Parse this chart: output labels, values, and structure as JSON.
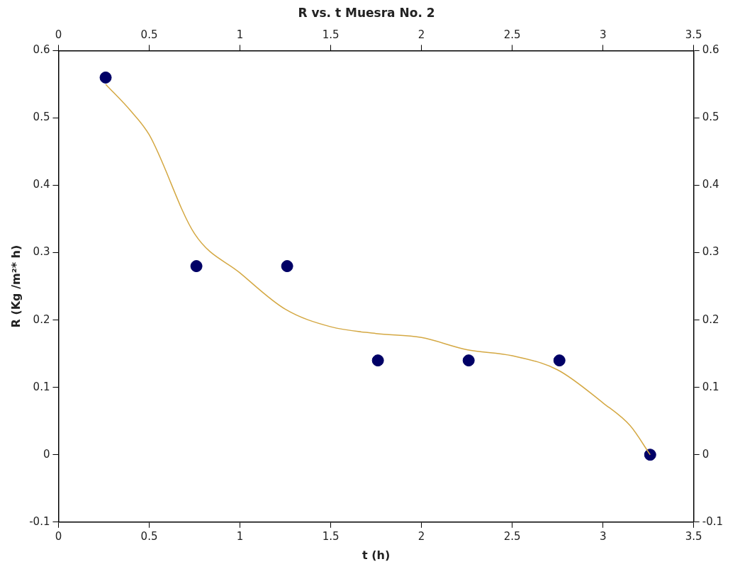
{
  "chart_data": {
    "type": "scatter",
    "title": "R vs. t Muesra No. 2",
    "xlabel": "t (h)",
    "ylabel": "R (Kg /m²* h)",
    "x": [
      0.26,
      0.76,
      1.26,
      1.76,
      2.26,
      2.76,
      3.26
    ],
    "series": [
      {
        "color": "#000066",
        "marker": "circle",
        "values": [
          0.56,
          0.28,
          0.28,
          0.14,
          0.14,
          0.14,
          0
        ]
      },
      {
        "type": "line",
        "color": "#d4a843",
        "marker": "none",
        "x": [
          0.26,
          0.4,
          0.5,
          0.75,
          1,
          1.25,
          1.5,
          1.75,
          2,
          2.25,
          2.5,
          2.75,
          3,
          3.15,
          3.26
        ],
        "values": [
          0.55,
          0.51,
          0.475,
          0.328,
          0.27,
          0.216,
          0.19,
          0.18,
          0.174,
          0.156,
          0.147,
          0.126,
          0.077,
          0.043,
          0
        ]
      }
    ],
    "xlim": [
      0,
      3.5
    ],
    "xticks": [
      0,
      0.5,
      1,
      1.5,
      2,
      2.5,
      3,
      3.5
    ],
    "x2lim": [
      0,
      3.5
    ],
    "x2ticks": [
      0,
      0.5,
      1,
      1.5,
      2,
      2.5,
      3,
      3.5
    ],
    "ylim": [
      -0.1,
      0.6
    ],
    "yticks": [
      -0.1,
      0,
      0.1,
      0.2,
      0.3,
      0.4,
      0.5,
      0.6
    ],
    "y2lim": [
      -0.1,
      0.6
    ],
    "y2ticks": [
      -0.1,
      0,
      0.1,
      0.2,
      0.3,
      0.4,
      0.5,
      0.6
    ],
    "grid": false,
    "legend": false
  }
}
